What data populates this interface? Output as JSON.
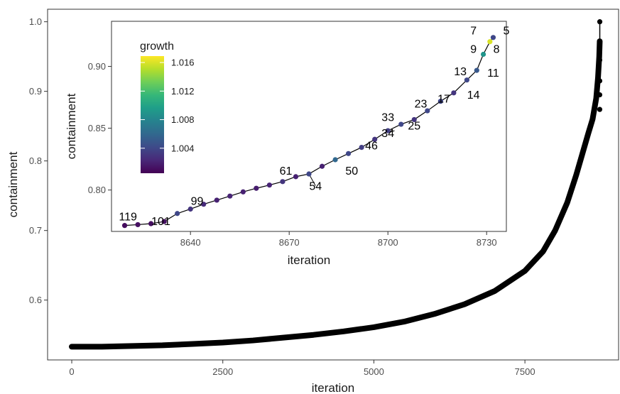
{
  "chart_data": [
    {
      "type": "line",
      "panel": "main",
      "xlabel": "iteration",
      "ylabel": "containment",
      "xlim": [
        -400,
        9050
      ],
      "ylim": [
        0.514,
        1.018
      ],
      "xticks": [
        0,
        2500,
        5000,
        7500
      ],
      "xtick_labels": [
        "0",
        "2500",
        "5000",
        "7500"
      ],
      "yticks": [
        0.6,
        0.7,
        0.8,
        0.9,
        1.0
      ],
      "ytick_labels": [
        "0.6",
        "0.7",
        "0.8",
        "0.9",
        "1.0"
      ],
      "grid": false,
      "point_color": "#000000",
      "curve": {
        "x": [
          0,
          500,
          1000,
          1500,
          2000,
          2500,
          3000,
          3500,
          4000,
          4500,
          5000,
          5500,
          6000,
          6500,
          7000,
          7500,
          7800,
          8000,
          8200,
          8350,
          8450,
          8550,
          8620,
          8680,
          8710,
          8730,
          8738
        ],
        "y": [
          0.533,
          0.533,
          0.534,
          0.535,
          0.537,
          0.539,
          0.542,
          0.546,
          0.55,
          0.555,
          0.561,
          0.569,
          0.58,
          0.594,
          0.613,
          0.642,
          0.67,
          0.7,
          0.74,
          0.78,
          0.81,
          0.84,
          0.86,
          0.89,
          0.92,
          0.95,
          0.972
        ]
      },
      "top_points": {
        "x": [
          8738,
          8738,
          8738,
          8738,
          8738
        ],
        "y": [
          0.874,
          0.895,
          0.915,
          0.945,
          0.972
        ]
      },
      "last_point": {
        "x": 8739,
        "y": 1.0
      }
    },
    {
      "type": "scatter",
      "panel": "inset",
      "xlabel": "iteration",
      "ylabel": "containment",
      "xlim": [
        8616,
        8736
      ],
      "ylim": [
        0.7665,
        0.9365
      ],
      "xticks": [
        8640,
        8670,
        8700,
        8730
      ],
      "xtick_labels": [
        "8640",
        "8670",
        "8700",
        "8730"
      ],
      "yticks": [
        0.8,
        0.85,
        0.9
      ],
      "ytick_labels": [
        "0.80",
        "0.85",
        "0.90"
      ],
      "grid": false,
      "x": [
        8620,
        8624,
        8628,
        8632,
        8636,
        8640,
        8644,
        8648,
        8652,
        8656,
        8660,
        8664,
        8668,
        8672,
        8676,
        8680,
        8684,
        8688,
        8692,
        8696,
        8700,
        8704,
        8708,
        8712,
        8716,
        8720,
        8724,
        8727,
        8729,
        8731,
        8732
      ],
      "y": [
        0.7713,
        0.772,
        0.7728,
        0.7745,
        0.781,
        0.7846,
        0.7885,
        0.7918,
        0.7951,
        0.7985,
        0.8014,
        0.804,
        0.8068,
        0.8108,
        0.813,
        0.8192,
        0.8245,
        0.8295,
        0.8345,
        0.841,
        0.848,
        0.8532,
        0.857,
        0.8641,
        0.8718,
        0.8786,
        0.889,
        0.8968,
        0.9098,
        0.92,
        0.9234
      ],
      "growth": [
        1.001,
        1.0012,
        1.0011,
        1.0012,
        1.004,
        1.003,
        1.0025,
        1.002,
        1.0022,
        1.002,
        1.0018,
        1.0022,
        1.003,
        1.002,
        1.004,
        1.002,
        1.006,
        1.004,
        1.0035,
        1.003,
        1.0035,
        1.004,
        1.003,
        1.004,
        1.004,
        1.003,
        1.004,
        1.005,
        1.009,
        1.016,
        1.004
      ],
      "labels": [
        {
          "text": "119",
          "x": 8621,
          "y": 0.7755
        },
        {
          "text": "101",
          "x": 8631,
          "y": 0.7718
        },
        {
          "text": "99",
          "x": 8642,
          "y": 0.788
        },
        {
          "text": "61",
          "x": 8669,
          "y": 0.8125
        },
        {
          "text": "54",
          "x": 8678,
          "y": 0.8
        },
        {
          "text": "50",
          "x": 8689,
          "y": 0.8125
        },
        {
          "text": "46",
          "x": 8695,
          "y": 0.8328
        },
        {
          "text": "34",
          "x": 8700,
          "y": 0.8428
        },
        {
          "text": "33",
          "x": 8700,
          "y": 0.8558
        },
        {
          "text": "25",
          "x": 8708,
          "y": 0.8488
        },
        {
          "text": "23",
          "x": 8710,
          "y": 0.8668
        },
        {
          "text": "17",
          "x": 8717,
          "y": 0.8708
        },
        {
          "text": "14",
          "x": 8726,
          "y": 0.8738
        },
        {
          "text": "13",
          "x": 8722,
          "y": 0.8928
        },
        {
          "text": "11",
          "x": 8732,
          "y": 0.8918
        },
        {
          "text": "9",
          "x": 8726,
          "y": 0.9108
        },
        {
          "text": "8",
          "x": 8733,
          "y": 0.9108
        },
        {
          "text": "7",
          "x": 8726,
          "y": 0.9258
        },
        {
          "text": "5",
          "x": 8736,
          "y": 0.9258
        }
      ],
      "leader_lines": [
        {
          "label": "54",
          "x": 8676,
          "y": 0.813
        },
        {
          "label": "34",
          "x": 8702,
          "y": 0.848
        }
      ],
      "legend": {
        "title": "growth",
        "placement": "top-left",
        "min": 1.0005,
        "max": 1.0169,
        "ticks": [
          1.004,
          1.008,
          1.012,
          1.016
        ],
        "tick_labels": [
          "1.004",
          "1.008",
          "1.012",
          "1.016"
        ],
        "colors": [
          "#440154",
          "#482878",
          "#3e4a89",
          "#31688e",
          "#26828e",
          "#1f9e89",
          "#35b779",
          "#6ece58",
          "#b5de2b",
          "#fde725"
        ]
      }
    }
  ]
}
